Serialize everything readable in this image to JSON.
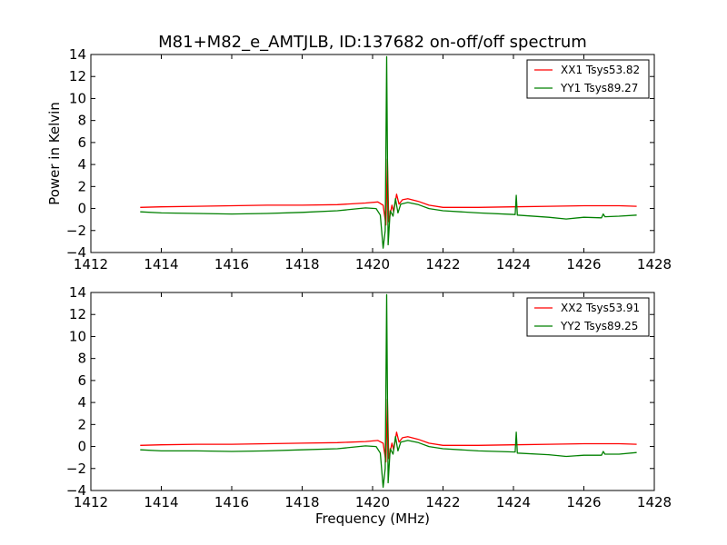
{
  "figure": {
    "title": "M81+M82_e_AMTJLB, ID:137682 on-off/off spectrum",
    "xlabel": "Frequency (MHz)",
    "ylabel": "Power in Kelvin"
  },
  "chart_data": [
    {
      "type": "line",
      "xlim": [
        1412,
        1428
      ],
      "ylim": [
        -4,
        14
      ],
      "xticks": [
        1412,
        1414,
        1416,
        1418,
        1420,
        1422,
        1424,
        1426,
        1428
      ],
      "yticks": [
        -4,
        -2,
        0,
        2,
        4,
        6,
        8,
        10,
        12,
        14
      ],
      "ytick_labels": [
        "−4",
        "−2",
        "0",
        "2",
        "4",
        "6",
        "8",
        "10",
        "12",
        "14"
      ],
      "legend": "upper-right",
      "grid": false,
      "series": [
        {
          "name": "XX1 Tsys53.82",
          "color": "#ff0000",
          "points": [
            [
              1413.4,
              0.1
            ],
            [
              1414,
              0.15
            ],
            [
              1415,
              0.2
            ],
            [
              1416,
              0.25
            ],
            [
              1417,
              0.3
            ],
            [
              1418,
              0.3
            ],
            [
              1419,
              0.35
            ],
            [
              1419.8,
              0.5
            ],
            [
              1420.15,
              0.6
            ],
            [
              1420.3,
              0.3
            ],
            [
              1420.38,
              -1.5
            ],
            [
              1420.42,
              4.5
            ],
            [
              1420.46,
              -1.2
            ],
            [
              1420.55,
              0.3
            ],
            [
              1420.6,
              -0.3
            ],
            [
              1420.68,
              1.3
            ],
            [
              1420.75,
              0.4
            ],
            [
              1420.85,
              0.8
            ],
            [
              1421.0,
              0.9
            ],
            [
              1421.3,
              0.65
            ],
            [
              1421.6,
              0.3
            ],
            [
              1422,
              0.1
            ],
            [
              1423,
              0.1
            ],
            [
              1424,
              0.15
            ],
            [
              1425,
              0.2
            ],
            [
              1426,
              0.25
            ],
            [
              1427,
              0.25
            ],
            [
              1427.5,
              0.2
            ]
          ]
        },
        {
          "name": "YY1 Tsys89.27",
          "color": "#008000",
          "points": [
            [
              1413.4,
              -0.3
            ],
            [
              1414,
              -0.4
            ],
            [
              1415,
              -0.45
            ],
            [
              1416,
              -0.5
            ],
            [
              1417,
              -0.45
            ],
            [
              1418,
              -0.35
            ],
            [
              1419,
              -0.2
            ],
            [
              1419.8,
              0.05
            ],
            [
              1420.1,
              0.0
            ],
            [
              1420.22,
              -0.6
            ],
            [
              1420.3,
              -3.6
            ],
            [
              1420.36,
              -2.0
            ],
            [
              1420.4,
              13.8
            ],
            [
              1420.44,
              -3.3
            ],
            [
              1420.5,
              -0.2
            ],
            [
              1420.58,
              -0.7
            ],
            [
              1420.65,
              0.9
            ],
            [
              1420.72,
              -0.4
            ],
            [
              1420.8,
              0.4
            ],
            [
              1421.0,
              0.55
            ],
            [
              1421.3,
              0.35
            ],
            [
              1421.6,
              0.0
            ],
            [
              1422,
              -0.2
            ],
            [
              1423,
              -0.4
            ],
            [
              1424.05,
              -0.55
            ],
            [
              1424.08,
              1.2
            ],
            [
              1424.11,
              -0.6
            ],
            [
              1425,
              -0.8
            ],
            [
              1425.5,
              -0.95
            ],
            [
              1426,
              -0.8
            ],
            [
              1426.5,
              -0.85
            ],
            [
              1426.55,
              -0.5
            ],
            [
              1426.6,
              -0.75
            ],
            [
              1427,
              -0.7
            ],
            [
              1427.5,
              -0.6
            ]
          ]
        }
      ]
    },
    {
      "type": "line",
      "xlim": [
        1412,
        1428
      ],
      "ylim": [
        -4,
        14
      ],
      "xticks": [
        1412,
        1414,
        1416,
        1418,
        1420,
        1422,
        1424,
        1426,
        1428
      ],
      "yticks": [
        -4,
        -2,
        0,
        2,
        4,
        6,
        8,
        10,
        12,
        14
      ],
      "ytick_labels": [
        "−4",
        "−2",
        "0",
        "2",
        "4",
        "6",
        "8",
        "10",
        "12",
        "14"
      ],
      "legend": "upper-right",
      "grid": false,
      "series": [
        {
          "name": "XX2 Tsys53.91",
          "color": "#ff0000",
          "points": [
            [
              1413.4,
              0.1
            ],
            [
              1414,
              0.15
            ],
            [
              1415,
              0.2
            ],
            [
              1416,
              0.2
            ],
            [
              1417,
              0.25
            ],
            [
              1418,
              0.3
            ],
            [
              1419,
              0.35
            ],
            [
              1419.8,
              0.45
            ],
            [
              1420.15,
              0.55
            ],
            [
              1420.3,
              0.3
            ],
            [
              1420.38,
              -1.4
            ],
            [
              1420.42,
              4.3
            ],
            [
              1420.46,
              -1.1
            ],
            [
              1420.55,
              0.3
            ],
            [
              1420.6,
              -0.3
            ],
            [
              1420.68,
              1.3
            ],
            [
              1420.75,
              0.4
            ],
            [
              1420.85,
              0.8
            ],
            [
              1421.0,
              0.9
            ],
            [
              1421.3,
              0.65
            ],
            [
              1421.6,
              0.3
            ],
            [
              1422,
              0.1
            ],
            [
              1423,
              0.1
            ],
            [
              1424,
              0.15
            ],
            [
              1425,
              0.2
            ],
            [
              1426,
              0.25
            ],
            [
              1427,
              0.25
            ],
            [
              1427.5,
              0.2
            ]
          ]
        },
        {
          "name": "YY2 Tsys89.25",
          "color": "#008000",
          "points": [
            [
              1413.4,
              -0.3
            ],
            [
              1414,
              -0.4
            ],
            [
              1415,
              -0.4
            ],
            [
              1416,
              -0.45
            ],
            [
              1417,
              -0.4
            ],
            [
              1418,
              -0.3
            ],
            [
              1419,
              -0.2
            ],
            [
              1419.8,
              0.05
            ],
            [
              1420.1,
              0.0
            ],
            [
              1420.22,
              -0.6
            ],
            [
              1420.3,
              -3.7
            ],
            [
              1420.36,
              -2.0
            ],
            [
              1420.4,
              13.8
            ],
            [
              1420.44,
              -3.3
            ],
            [
              1420.5,
              -0.2
            ],
            [
              1420.58,
              -0.7
            ],
            [
              1420.65,
              0.9
            ],
            [
              1420.72,
              -0.4
            ],
            [
              1420.8,
              0.4
            ],
            [
              1421.0,
              0.55
            ],
            [
              1421.3,
              0.35
            ],
            [
              1421.6,
              0.0
            ],
            [
              1422,
              -0.2
            ],
            [
              1423,
              -0.4
            ],
            [
              1424.05,
              -0.5
            ],
            [
              1424.08,
              1.3
            ],
            [
              1424.11,
              -0.6
            ],
            [
              1425,
              -0.75
            ],
            [
              1425.5,
              -0.9
            ],
            [
              1426,
              -0.8
            ],
            [
              1426.5,
              -0.8
            ],
            [
              1426.55,
              -0.45
            ],
            [
              1426.6,
              -0.7
            ],
            [
              1427,
              -0.7
            ],
            [
              1427.5,
              -0.55
            ]
          ]
        }
      ]
    }
  ]
}
